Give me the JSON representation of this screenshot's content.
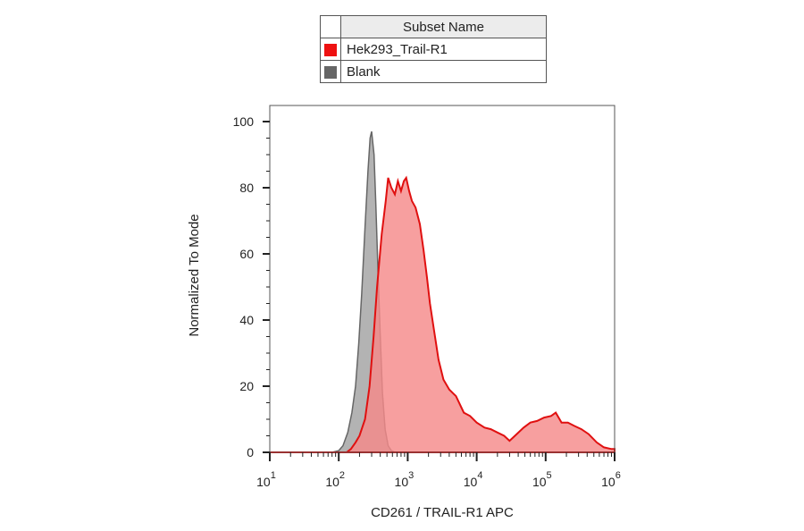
{
  "legend": {
    "header": "Subset Name",
    "entries": [
      {
        "label": "Hek293_Trail-R1",
        "color": "#ee1111"
      },
      {
        "label": "Blank",
        "color": "#666666"
      }
    ]
  },
  "chart_data": {
    "type": "area",
    "title": "",
    "xlabel": "CD261 / TRAIL-R1 APC",
    "ylabel": "Normalized To Mode",
    "xscale": "log",
    "xlim": [
      10,
      1000000
    ],
    "ylim": [
      0,
      100
    ],
    "grid": false,
    "legend_position": "top",
    "y_ticks": [
      0,
      20,
      40,
      60,
      80,
      100
    ],
    "x_ticks": [
      {
        "value": 10,
        "base": "10",
        "exp": "1"
      },
      {
        "value": 100,
        "base": "10",
        "exp": "2"
      },
      {
        "value": 1000,
        "base": "10",
        "exp": "3"
      },
      {
        "value": 10000,
        "base": "10",
        "exp": "4"
      },
      {
        "value": 100000,
        "base": "10",
        "exp": "5"
      },
      {
        "value": 1000000,
        "base": "10",
        "exp": "6"
      }
    ],
    "series": [
      {
        "name": "Blank",
        "color": "#666666",
        "fill": "#b3b3b3",
        "points": [
          [
            10,
            0
          ],
          [
            80,
            0
          ],
          [
            100,
            0.5
          ],
          [
            115,
            2
          ],
          [
            135,
            6
          ],
          [
            155,
            12
          ],
          [
            175,
            20
          ],
          [
            195,
            33
          ],
          [
            215,
            48
          ],
          [
            240,
            68
          ],
          [
            265,
            85
          ],
          [
            285,
            95
          ],
          [
            300,
            97
          ],
          [
            325,
            90
          ],
          [
            345,
            75
          ],
          [
            370,
            55
          ],
          [
            400,
            35
          ],
          [
            430,
            18
          ],
          [
            470,
            7
          ],
          [
            520,
            2
          ],
          [
            580,
            0.5
          ],
          [
            650,
            0
          ],
          [
            1000000,
            0
          ]
        ]
      },
      {
        "name": "Hek293_Trail-R1",
        "color": "#e01010",
        "fill": "#f58a8a",
        "points": [
          [
            10,
            0
          ],
          [
            130,
            0
          ],
          [
            150,
            1
          ],
          [
            175,
            3
          ],
          [
            200,
            5
          ],
          [
            240,
            10
          ],
          [
            280,
            20
          ],
          [
            320,
            35
          ],
          [
            360,
            50
          ],
          [
            420,
            66
          ],
          [
            480,
            76
          ],
          [
            520,
            83
          ],
          [
            580,
            80
          ],
          [
            650,
            78
          ],
          [
            720,
            82
          ],
          [
            800,
            79
          ],
          [
            880,
            82
          ],
          [
            950,
            83
          ],
          [
            1050,
            79
          ],
          [
            1150,
            76
          ],
          [
            1300,
            74
          ],
          [
            1500,
            69
          ],
          [
            1700,
            61
          ],
          [
            1900,
            53
          ],
          [
            2100,
            45
          ],
          [
            2400,
            37
          ],
          [
            2800,
            28
          ],
          [
            3300,
            22
          ],
          [
            4000,
            19
          ],
          [
            5000,
            17
          ],
          [
            6500,
            12
          ],
          [
            8000,
            11
          ],
          [
            10000,
            9
          ],
          [
            13000,
            7.5
          ],
          [
            16000,
            7
          ],
          [
            20000,
            6
          ],
          [
            25000,
            5
          ],
          [
            30000,
            3.5
          ],
          [
            38000,
            5.5
          ],
          [
            48000,
            7.5
          ],
          [
            60000,
            9
          ],
          [
            75000,
            9.5
          ],
          [
            95000,
            10.5
          ],
          [
            120000,
            11
          ],
          [
            140000,
            12
          ],
          [
            170000,
            9
          ],
          [
            210000,
            9
          ],
          [
            260000,
            8
          ],
          [
            330000,
            7
          ],
          [
            420000,
            5.5
          ],
          [
            550000,
            3
          ],
          [
            700000,
            1.5
          ],
          [
            900000,
            1
          ],
          [
            1000000,
            1
          ]
        ]
      }
    ]
  }
}
